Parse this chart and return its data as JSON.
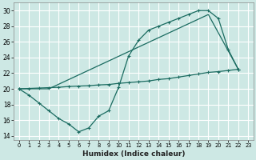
{
  "title": "",
  "xlabel": "Humidex (Indice chaleur)",
  "bg_color": "#cde8e4",
  "grid_color": "#ffffff",
  "line_color": "#1a6b60",
  "xlim": [
    -0.5,
    23.5
  ],
  "ylim": [
    13.5,
    31.0
  ],
  "xticks": [
    0,
    1,
    2,
    3,
    4,
    5,
    6,
    7,
    8,
    9,
    10,
    11,
    12,
    13,
    14,
    15,
    16,
    17,
    18,
    19,
    20,
    21,
    22,
    23
  ],
  "yticks": [
    14,
    16,
    18,
    20,
    22,
    24,
    26,
    28,
    30
  ],
  "line1_x": [
    0,
    1,
    2,
    3,
    4,
    5,
    6,
    7,
    8,
    9,
    10,
    11,
    12,
    13,
    14,
    15,
    16,
    17,
    18,
    19,
    20,
    21,
    22
  ],
  "line1_y": [
    20.0,
    19.2,
    18.2,
    17.2,
    16.2,
    15.5,
    14.5,
    15.0,
    16.5,
    17.2,
    20.2,
    24.2,
    26.2,
    27.5,
    28.0,
    28.5,
    29.0,
    29.5,
    30.0,
    30.0,
    29.0,
    25.0,
    22.5
  ],
  "line2_x": [
    0,
    1,
    2,
    3,
    4,
    5,
    6,
    7,
    8,
    9,
    10,
    11,
    12,
    13,
    14,
    15,
    16,
    17,
    18,
    19,
    20,
    21,
    22
  ],
  "line2_y": [
    20.0,
    20.05,
    20.1,
    20.15,
    20.2,
    20.3,
    20.35,
    20.4,
    20.5,
    20.55,
    20.7,
    20.8,
    20.9,
    21.0,
    21.2,
    21.3,
    21.5,
    21.7,
    21.9,
    22.1,
    22.2,
    22.35,
    22.5
  ],
  "line3_x": [
    0,
    3,
    19,
    22
  ],
  "line3_y": [
    20.0,
    20.0,
    29.5,
    22.5
  ]
}
